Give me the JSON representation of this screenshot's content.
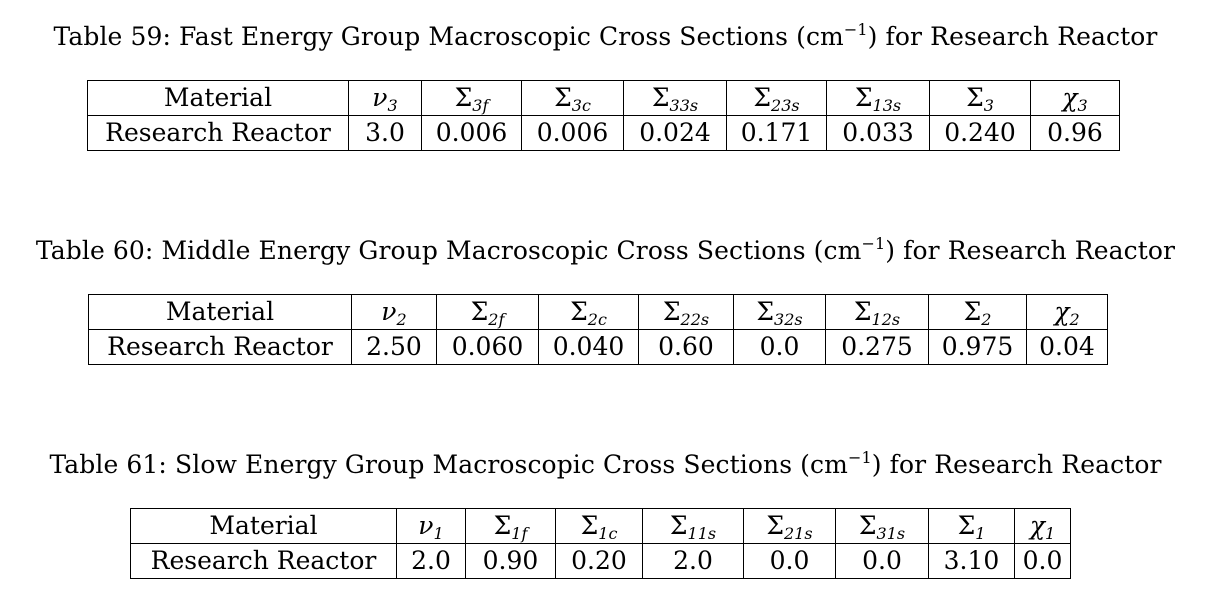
{
  "tables": [
    {
      "caption_main": "Table 59: Fast Energy Group Macroscopic Cross Sections (cm",
      "caption_exp": "−1",
      "caption_tail": ") for Research Reactor",
      "headers": [
        "Material",
        "ν",
        "Σ",
        "Σ",
        "Σ",
        "Σ",
        "Σ",
        "Σ",
        "χ"
      ],
      "header_subs": [
        "",
        "3",
        "3f",
        "3c",
        "33s",
        "23s",
        "13s",
        "3",
        "3"
      ],
      "row": [
        "Research Reactor",
        "3.0",
        "0.006",
        "0.006",
        "0.024",
        "0.171",
        "0.033",
        "0.240",
        "0.96"
      ]
    },
    {
      "caption_main": "Table 60: Middle Energy Group Macroscopic Cross Sections (cm",
      "caption_exp": "−1",
      "caption_tail": ") for Research Reactor",
      "headers": [
        "Material",
        "ν",
        "Σ",
        "Σ",
        "Σ",
        "Σ",
        "Σ",
        "Σ",
        "χ"
      ],
      "header_subs": [
        "",
        "2",
        "2f",
        "2c",
        "22s",
        "32s",
        "12s",
        "2",
        "2"
      ],
      "row": [
        "Research Reactor",
        "2.50",
        "0.060",
        "0.040",
        "0.60",
        "0.0",
        "0.275",
        "0.975",
        "0.04"
      ]
    },
    {
      "caption_main": "Table 61: Slow Energy Group Macroscopic Cross Sections (cm",
      "caption_exp": "−1",
      "caption_tail": ") for Research Reactor",
      "headers": [
        "Material",
        "ν",
        "Σ",
        "Σ",
        "Σ",
        "Σ",
        "Σ",
        "Σ",
        "χ"
      ],
      "header_subs": [
        "",
        "1",
        "1f",
        "1c",
        "11s",
        "21s",
        "31s",
        "1",
        "1"
      ],
      "row": [
        "Research Reactor",
        "2.0",
        "0.90",
        "0.20",
        "2.0",
        "0.0",
        "0.0",
        "3.10",
        "0.0"
      ]
    }
  ]
}
